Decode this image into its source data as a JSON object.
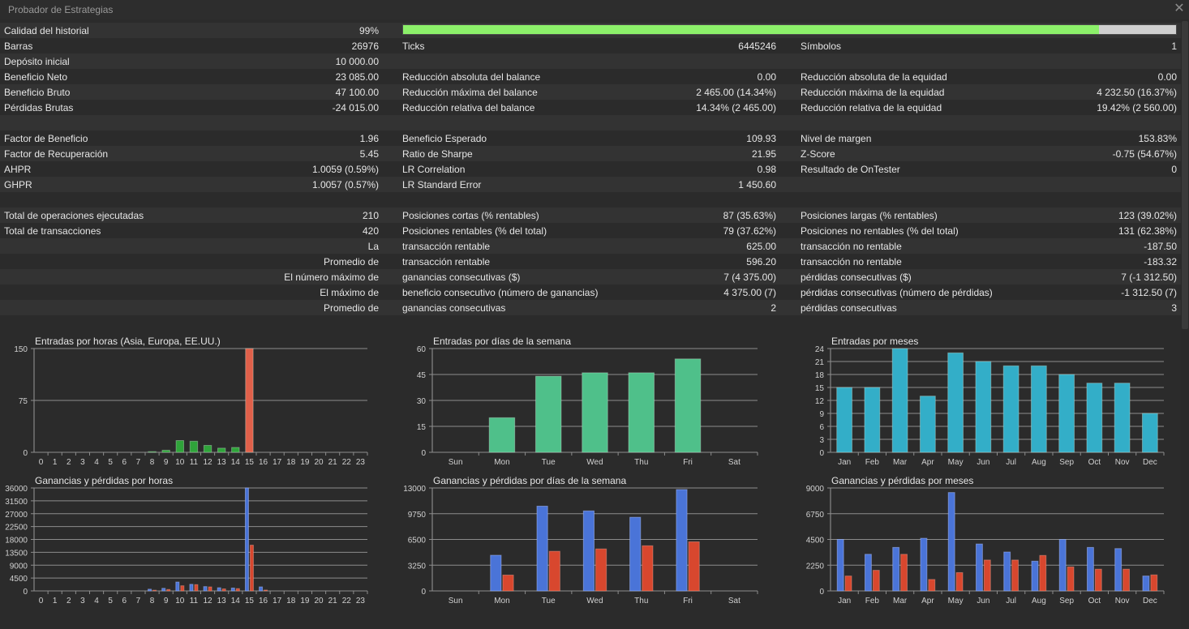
{
  "window": {
    "title": "Probador de Estrategias"
  },
  "stats": {
    "rows": [
      {
        "l1": "Calidad del historial",
        "v1": "99%",
        "quality": 0.9
      },
      {
        "l1": "Barras",
        "v1": "26976",
        "l2": "Ticks",
        "v2": "6445246",
        "l3": "Símbolos",
        "v3": "1"
      },
      {
        "l1": "Depósito inicial",
        "v1": "10 000.00"
      },
      {
        "l1": "Beneficio Neto",
        "v1": "23 085.00",
        "l2": "Reducción absoluta del balance",
        "v2": "0.00",
        "l3": "Reducción absoluta de la equidad",
        "v3": "0.00"
      },
      {
        "l1": "Beneficio Bruto",
        "v1": "47 100.00",
        "l2": "Reducción máxima del balance",
        "v2": "2 465.00 (14.34%)",
        "l3": "Reducción máxima de la equidad",
        "v3": "4 232.50 (16.37%)"
      },
      {
        "l1": "Pérdidas Brutas",
        "v1": "-24 015.00",
        "l2": "Reducción relativa del balance",
        "v2": "14.34% (2 465.00)",
        "l3": "Reducción relativa de la equidad",
        "v3": "19.42% (2 560.00)"
      },
      {},
      {
        "l1": "Factor de Beneficio",
        "v1": "1.96",
        "l2": "Beneficio Esperado",
        "v2": "109.93",
        "l3": "Nivel de margen",
        "v3": "153.83%"
      },
      {
        "l1": "Factor de Recuperación",
        "v1": "5.45",
        "l2": "Ratio de Sharpe",
        "v2": "21.95",
        "l3": "Z-Score",
        "v3": "-0.75 (54.67%)"
      },
      {
        "l1": "AHPR",
        "v1": "1.0059 (0.59%)",
        "l2": "LR Correlation",
        "v2": "0.98",
        "l3": "Resultado de OnTester",
        "v3": "0"
      },
      {
        "l1": "GHPR",
        "v1": "1.0057 (0.57%)",
        "l2": "LR Standard Error",
        "v2": "1 450.60"
      },
      {},
      {
        "l1": "Total de operaciones ejecutadas",
        "v1": "210",
        "l2": "Posiciones cortas (% rentables)",
        "v2": "87 (35.63%)",
        "l3": "Posiciones largas (% rentables)",
        "v3": "123 (39.02%)"
      },
      {
        "l1": "Total de transacciones",
        "v1": "420",
        "l2": "Posiciones rentables (% del total)",
        "v2": "79 (37.62%)",
        "l3": "Posiciones no rentables (% del total)",
        "v3": "131 (62.38%)"
      },
      {
        "v1": "La",
        "l2": "transacción rentable",
        "v2": "625.00",
        "l3": "transacción no rentable",
        "v3": "-187.50"
      },
      {
        "v1": "Promedio de",
        "l2": "transacción rentable",
        "v2": "596.20",
        "l3": "transacción no rentable",
        "v3": "-183.32"
      },
      {
        "v1": "El número máximo de",
        "l2": "ganancias consecutivas ($)",
        "v2": "7 (4 375.00)",
        "l3": "pérdidas consecutivas ($)",
        "v3": "7 (-1 312.50)"
      },
      {
        "v1": "El máximo de",
        "l2": "beneficio consecutivo (número de ganancias)",
        "v2": "4 375.00 (7)",
        "l3": "pérdidas consecutivas (número de pérdidas)",
        "v3": "-1 312.50 (7)"
      },
      {
        "v1": "Promedio de",
        "l2": "ganancias consecutivas",
        "v2": "2",
        "l3": "pérdidas consecutivas",
        "v3": "3"
      }
    ]
  },
  "chart_data": [
    {
      "type": "bar",
      "title": "Entradas por horas (Asia, Europa, EE.UU.)",
      "categories": [
        "0",
        "1",
        "2",
        "3",
        "4",
        "5",
        "6",
        "7",
        "8",
        "9",
        "10",
        "11",
        "12",
        "13",
        "14",
        "15",
        "16",
        "17",
        "18",
        "19",
        "20",
        "21",
        "22",
        "23"
      ],
      "yticks": [
        "0",
        "75",
        "150"
      ],
      "ylim": [
        0,
        150
      ],
      "series": [
        {
          "values": [
            0,
            0,
            0,
            0,
            0,
            0,
            0,
            0,
            1,
            3,
            17,
            16,
            10,
            6,
            7,
            150,
            0,
            0,
            0,
            0,
            0,
            0,
            0,
            0
          ]
        }
      ],
      "colors": {
        "main": "#2fa43a",
        "peak": "#e0604a"
      }
    },
    {
      "type": "bar",
      "title": "Entradas por días de la semana",
      "categories": [
        "Sun",
        "Mon",
        "Tue",
        "Wed",
        "Thu",
        "Fri",
        "Sat"
      ],
      "yticks": [
        "0",
        "15",
        "30",
        "45",
        "60"
      ],
      "ylim": [
        0,
        60
      ],
      "series": [
        {
          "values": [
            0,
            20,
            44,
            46,
            46,
            54,
            0
          ]
        }
      ],
      "colors": {
        "main": "#4fc08a"
      }
    },
    {
      "type": "bar",
      "title": "Entradas por meses",
      "categories": [
        "Jan",
        "Feb",
        "Mar",
        "Apr",
        "May",
        "Jun",
        "Jul",
        "Aug",
        "Sep",
        "Oct",
        "Nov",
        "Dec"
      ],
      "yticks": [
        "0",
        "3",
        "6",
        "9",
        "12",
        "15",
        "18",
        "21",
        "24"
      ],
      "ylim": [
        0,
        24
      ],
      "series": [
        {
          "values": [
            15,
            15,
            24,
            13,
            23,
            21,
            20,
            20,
            18,
            16,
            16,
            9
          ]
        }
      ],
      "colors": {
        "main": "#33aec8"
      }
    },
    {
      "type": "bar",
      "title": "Ganancias y pérdidas por horas",
      "categories": [
        "0",
        "1",
        "2",
        "3",
        "4",
        "5",
        "6",
        "7",
        "8",
        "9",
        "10",
        "11",
        "12",
        "13",
        "14",
        "15",
        "16",
        "17",
        "18",
        "19",
        "20",
        "21",
        "22",
        "23"
      ],
      "yticks": [
        "0",
        "4500",
        "9000",
        "13500",
        "18000",
        "22500",
        "27000",
        "31500",
        "36000"
      ],
      "ylim": [
        0,
        36000
      ],
      "series": [
        {
          "values": [
            0,
            0,
            0,
            0,
            0,
            0,
            0,
            0,
            600,
            900,
            3100,
            2300,
            1500,
            1100,
            1000,
            36000,
            1400,
            0,
            0,
            0,
            0,
            0,
            0,
            0
          ]
        },
        {
          "values": [
            0,
            0,
            0,
            0,
            0,
            0,
            0,
            0,
            250,
            500,
            1800,
            2200,
            1400,
            700,
            800,
            16000,
            300,
            0,
            0,
            0,
            0,
            0,
            0,
            0
          ]
        }
      ],
      "colors": {
        "profit": "#4a74d8",
        "loss": "#d8472e"
      }
    },
    {
      "type": "bar",
      "title": "Ganancias y pérdidas por días de la semana",
      "categories": [
        "Sun",
        "Mon",
        "Tue",
        "Wed",
        "Thu",
        "Fri",
        "Sat"
      ],
      "yticks": [
        "0",
        "3250",
        "6500",
        "9750",
        "13000"
      ],
      "ylim": [
        0,
        13000
      ],
      "series": [
        {
          "values": [
            0,
            4500,
            10700,
            10100,
            9300,
            12800,
            0
          ]
        },
        {
          "values": [
            0,
            2000,
            5000,
            5300,
            5700,
            6200,
            0
          ]
        }
      ],
      "colors": {
        "profit": "#4a74d8",
        "loss": "#d8472e"
      }
    },
    {
      "type": "bar",
      "title": "Ganancias y pérdidas por meses",
      "categories": [
        "Jan",
        "Feb",
        "Mar",
        "Apr",
        "May",
        "Jun",
        "Jul",
        "Aug",
        "Sep",
        "Oct",
        "Nov",
        "Dec"
      ],
      "yticks": [
        "0",
        "2250",
        "4500",
        "6750",
        "9000"
      ],
      "ylim": [
        0,
        9000
      ],
      "series": [
        {
          "values": [
            4500,
            3200,
            3800,
            4600,
            8600,
            4100,
            3400,
            2600,
            4500,
            3800,
            3700,
            1300
          ]
        },
        {
          "values": [
            1300,
            1800,
            3200,
            1000,
            1600,
            2700,
            2700,
            3100,
            2100,
            1900,
            1900,
            1400
          ]
        }
      ],
      "colors": {
        "profit": "#4a74d8",
        "loss": "#d8472e"
      }
    }
  ]
}
